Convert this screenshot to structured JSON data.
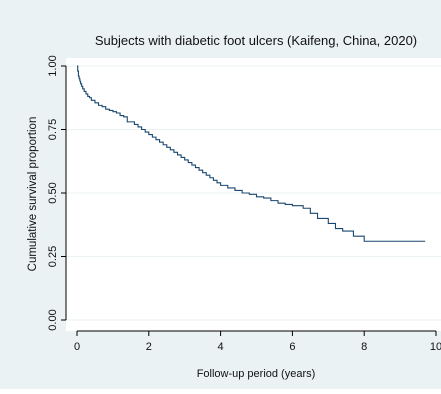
{
  "colors": {
    "outer_background": "#eaf2f3",
    "plot_background": "#ffffff",
    "gridline": "#eaf2f3",
    "curve": "#1a476f",
    "axis": "#000000"
  },
  "chart_data": {
    "type": "line",
    "title": "Subjects with diabetic foot ulcers (Kaifeng, China, 2020)",
    "xlabel": "Follow-up period (years)",
    "ylabel": "Cumulative survival proportion",
    "xlim": [
      0,
      10
    ],
    "ylim": [
      0,
      1
    ],
    "x_ticks": [
      0,
      2,
      4,
      6,
      8,
      10
    ],
    "x_tick_labels": [
      "0",
      "2",
      "4",
      "6",
      "8",
      "10"
    ],
    "y_ticks": [
      0,
      0.25,
      0.5,
      0.75,
      1
    ],
    "y_tick_labels": [
      "0.00",
      "0.25",
      "0.50",
      "0.75",
      "1.00"
    ],
    "grid": true,
    "legend": "none",
    "step": true,
    "series": [
      {
        "x": [
          0,
          0.02,
          0.04,
          0.06,
          0.08,
          0.1,
          0.13,
          0.16,
          0.2,
          0.25,
          0.3,
          0.35,
          0.4,
          0.5,
          0.6,
          0.7,
          0.8,
          0.9,
          1.0,
          1.1,
          1.2,
          1.3,
          1.4,
          1.6,
          1.7,
          1.8,
          1.9,
          2.0,
          2.1,
          2.2,
          2.3,
          2.4,
          2.5,
          2.6,
          2.7,
          2.8,
          2.9,
          3.0,
          3.1,
          3.2,
          3.3,
          3.4,
          3.5,
          3.6,
          3.7,
          3.8,
          3.9,
          4.0,
          4.2,
          4.4,
          4.6,
          4.8,
          5.0,
          5.2,
          5.4,
          5.6,
          5.8,
          6.0,
          6.3,
          6.5,
          6.7,
          7.0,
          7.2,
          7.4,
          7.7,
          8.0,
          9.7
        ],
        "y": [
          1.0,
          0.98,
          0.96,
          0.95,
          0.94,
          0.93,
          0.92,
          0.91,
          0.9,
          0.89,
          0.88,
          0.875,
          0.865,
          0.855,
          0.845,
          0.84,
          0.83,
          0.825,
          0.82,
          0.815,
          0.805,
          0.8,
          0.78,
          0.77,
          0.76,
          0.75,
          0.74,
          0.73,
          0.72,
          0.71,
          0.7,
          0.69,
          0.68,
          0.67,
          0.66,
          0.65,
          0.64,
          0.63,
          0.62,
          0.61,
          0.6,
          0.59,
          0.58,
          0.57,
          0.56,
          0.55,
          0.54,
          0.53,
          0.52,
          0.51,
          0.5,
          0.495,
          0.485,
          0.48,
          0.47,
          0.46,
          0.455,
          0.45,
          0.44,
          0.42,
          0.4,
          0.38,
          0.36,
          0.35,
          0.33,
          0.31,
          0.31
        ]
      }
    ]
  }
}
